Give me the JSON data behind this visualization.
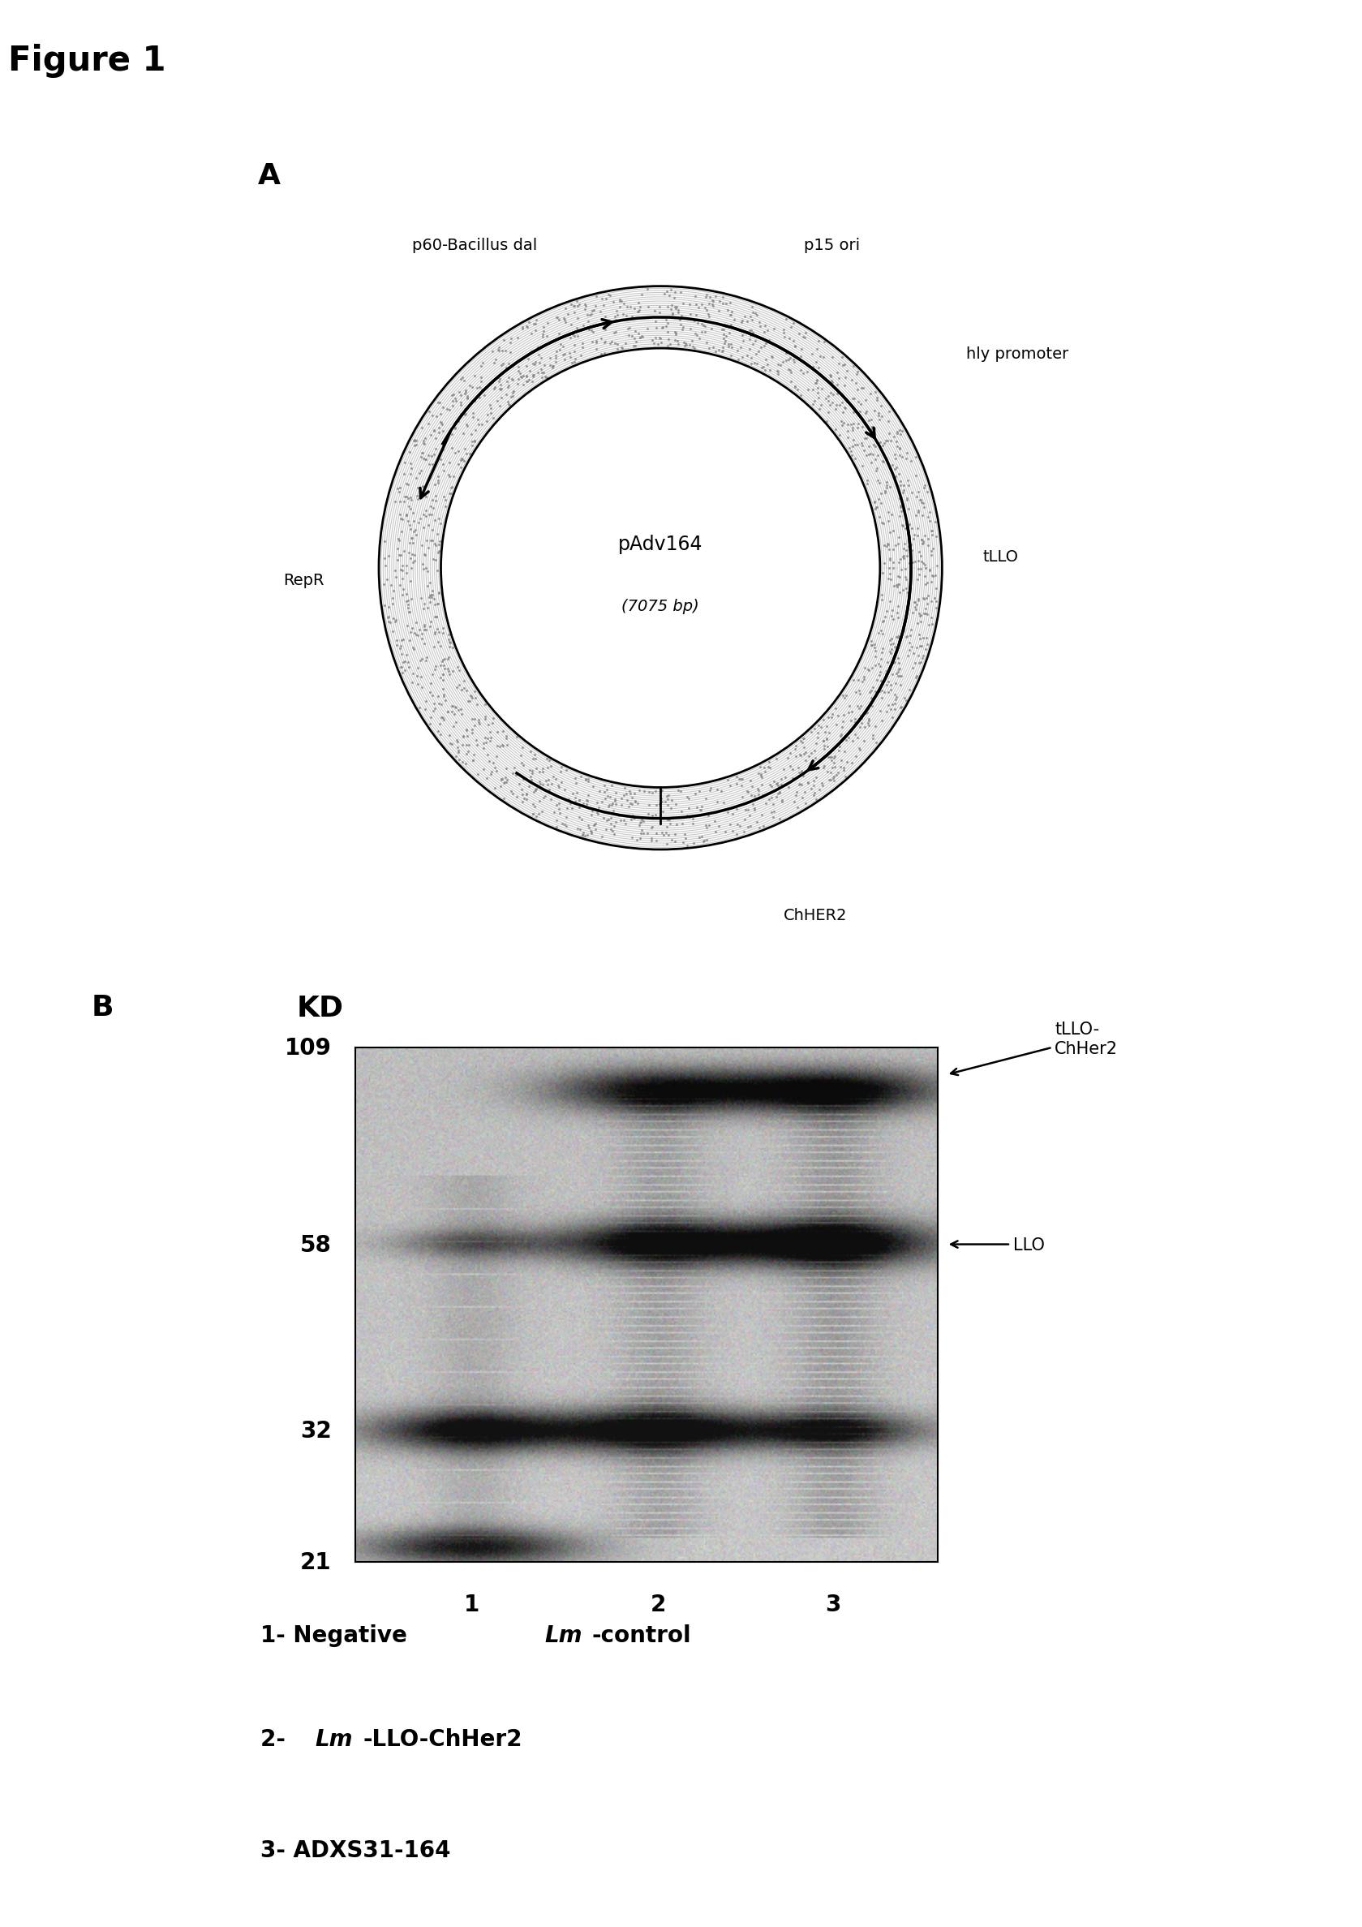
{
  "figure_title": "Figure 1",
  "panel_a_label": "A",
  "panel_b_label": "B",
  "plasmid_name": "pAdv164",
  "plasmid_bp": "(7075 bp)",
  "plasmid_labels": {
    "p60_bacillus_dal": "p60-Bacillus dal",
    "p15_ori": "p15 ori",
    "hly_promoter": "hly promoter",
    "tLLO": "tLLO",
    "ChHER2": "ChHER2",
    "RepR": "RepR"
  },
  "background_color": "#ffffff",
  "mw_markers": [
    109,
    58,
    32,
    21
  ]
}
